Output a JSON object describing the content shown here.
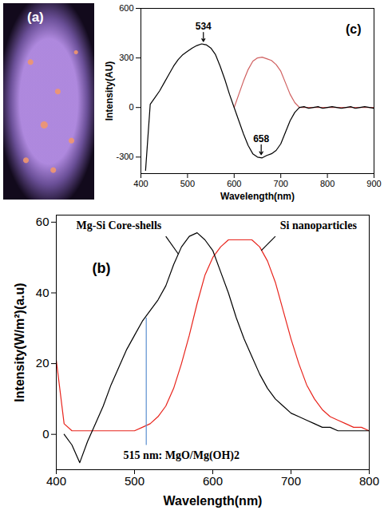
{
  "chart_data": [
    {
      "type": "image",
      "title": "(a)"
    },
    {
      "type": "line",
      "title": "(c)",
      "xlabel": "Wavelength(nm)",
      "ylabel": "Intensity(AU)",
      "x": [
        410,
        420,
        430,
        440,
        450,
        460,
        470,
        480,
        490,
        500,
        510,
        520,
        530,
        540,
        550,
        560,
        570,
        580,
        590,
        600,
        610,
        620,
        630,
        640,
        650,
        660,
        670,
        680,
        690,
        700,
        710,
        720,
        730,
        740,
        750,
        760,
        770,
        780,
        790,
        800,
        810,
        820,
        830,
        840,
        850,
        860,
        870,
        880,
        890,
        900
      ],
      "series": [
        {
          "color": "#d06060",
          "values": [
            null,
            null,
            null,
            null,
            null,
            null,
            null,
            null,
            null,
            null,
            null,
            null,
            null,
            null,
            null,
            null,
            null,
            null,
            null,
            0,
            80,
            160,
            230,
            280,
            300,
            305,
            295,
            285,
            260,
            220,
            150,
            80,
            30,
            0,
            0,
            0,
            0,
            0,
            0,
            0,
            0,
            0,
            0,
            0,
            0,
            0,
            0,
            0,
            0,
            0
          ]
        },
        {
          "color": "#000000",
          "values": [
            -380,
            20,
            60,
            100,
            150,
            200,
            250,
            290,
            320,
            340,
            360,
            375,
            385,
            380,
            360,
            320,
            250,
            170,
            80,
            0,
            -80,
            -160,
            -230,
            -280,
            -300,
            -305,
            -290,
            -280,
            -260,
            -220,
            -150,
            -80,
            -30,
            0,
            5,
            -5,
            0,
            5,
            -5,
            0,
            5,
            0,
            -5,
            0,
            5,
            -5,
            0,
            5,
            0,
            -5
          ]
        }
      ],
      "xlim": [
        400,
        900
      ],
      "xticks": [
        400,
        500,
        600,
        700,
        800,
        900
      ],
      "ylim": [
        -400,
        600
      ],
      "yticks": [
        -300,
        0,
        300,
        600
      ],
      "annotations": [
        {
          "text": "534",
          "x": 534,
          "y": 490,
          "arrow": true,
          "arrow_from": [
            534,
            455
          ],
          "arrow_to": [
            534,
            400
          ]
        },
        {
          "text": "658",
          "x": 658,
          "y": -190,
          "arrow": true,
          "arrow_from": [
            658,
            -225
          ],
          "arrow_to": [
            658,
            -285
          ]
        }
      ]
    },
    {
      "type": "line",
      "title": "(b)",
      "xlabel": "Wavelength(nm)",
      "ylabel": "Intensity(W/m²)(a.u)",
      "x": [
        400,
        410,
        420,
        430,
        440,
        450,
        460,
        470,
        480,
        490,
        500,
        510,
        520,
        530,
        540,
        550,
        560,
        570,
        580,
        590,
        600,
        610,
        620,
        630,
        640,
        650,
        660,
        670,
        680,
        690,
        700,
        710,
        720,
        730,
        740,
        750,
        760,
        770,
        780,
        790,
        800
      ],
      "series": [
        {
          "color": "#e8241c",
          "values": [
            21,
            3,
            1,
            1,
            1,
            1,
            1,
            1,
            1,
            1,
            1,
            2,
            3,
            5,
            8,
            13,
            20,
            28,
            37,
            45,
            50,
            53,
            55,
            55,
            55,
            55,
            53,
            49,
            43,
            35,
            27,
            20,
            14,
            10,
            7,
            5,
            4,
            3,
            2,
            2,
            1
          ]
        },
        {
          "color": "#000000",
          "values": [
            null,
            0,
            -3,
            -8,
            -2,
            3,
            8,
            14,
            19,
            24,
            28,
            32,
            35,
            38,
            42,
            48,
            53,
            56,
            57,
            55,
            52,
            46,
            40,
            33,
            27,
            22,
            17,
            13,
            10,
            8,
            6,
            5,
            4,
            3,
            2,
            2,
            1,
            1,
            1,
            1,
            1
          ]
        }
      ],
      "xlim": [
        400,
        800
      ],
      "xticks": [
        400,
        500,
        600,
        700,
        800
      ],
      "ylim": [
        -10,
        62
      ],
      "yticks": [
        0,
        20,
        40,
        60
      ],
      "annotations": [
        {
          "text": "Mg-Si Core-shells",
          "x": 480,
          "y": 59,
          "arrow_from": [
            540,
            56
          ],
          "arrow_to": [
            556,
            51
          ]
        },
        {
          "text": "Si nanoparticles",
          "x": 735,
          "y": 59,
          "arrow_from": [
            680,
            56
          ],
          "arrow_to": [
            662,
            52
          ]
        },
        {
          "text": "515 nm: MgO/Mg(OH)2",
          "x": 560,
          "y": -6,
          "arrow_from": [
            515,
            -3
          ],
          "arrow_to": [
            515,
            33
          ],
          "color": "#5b8fd0"
        }
      ]
    }
  ]
}
